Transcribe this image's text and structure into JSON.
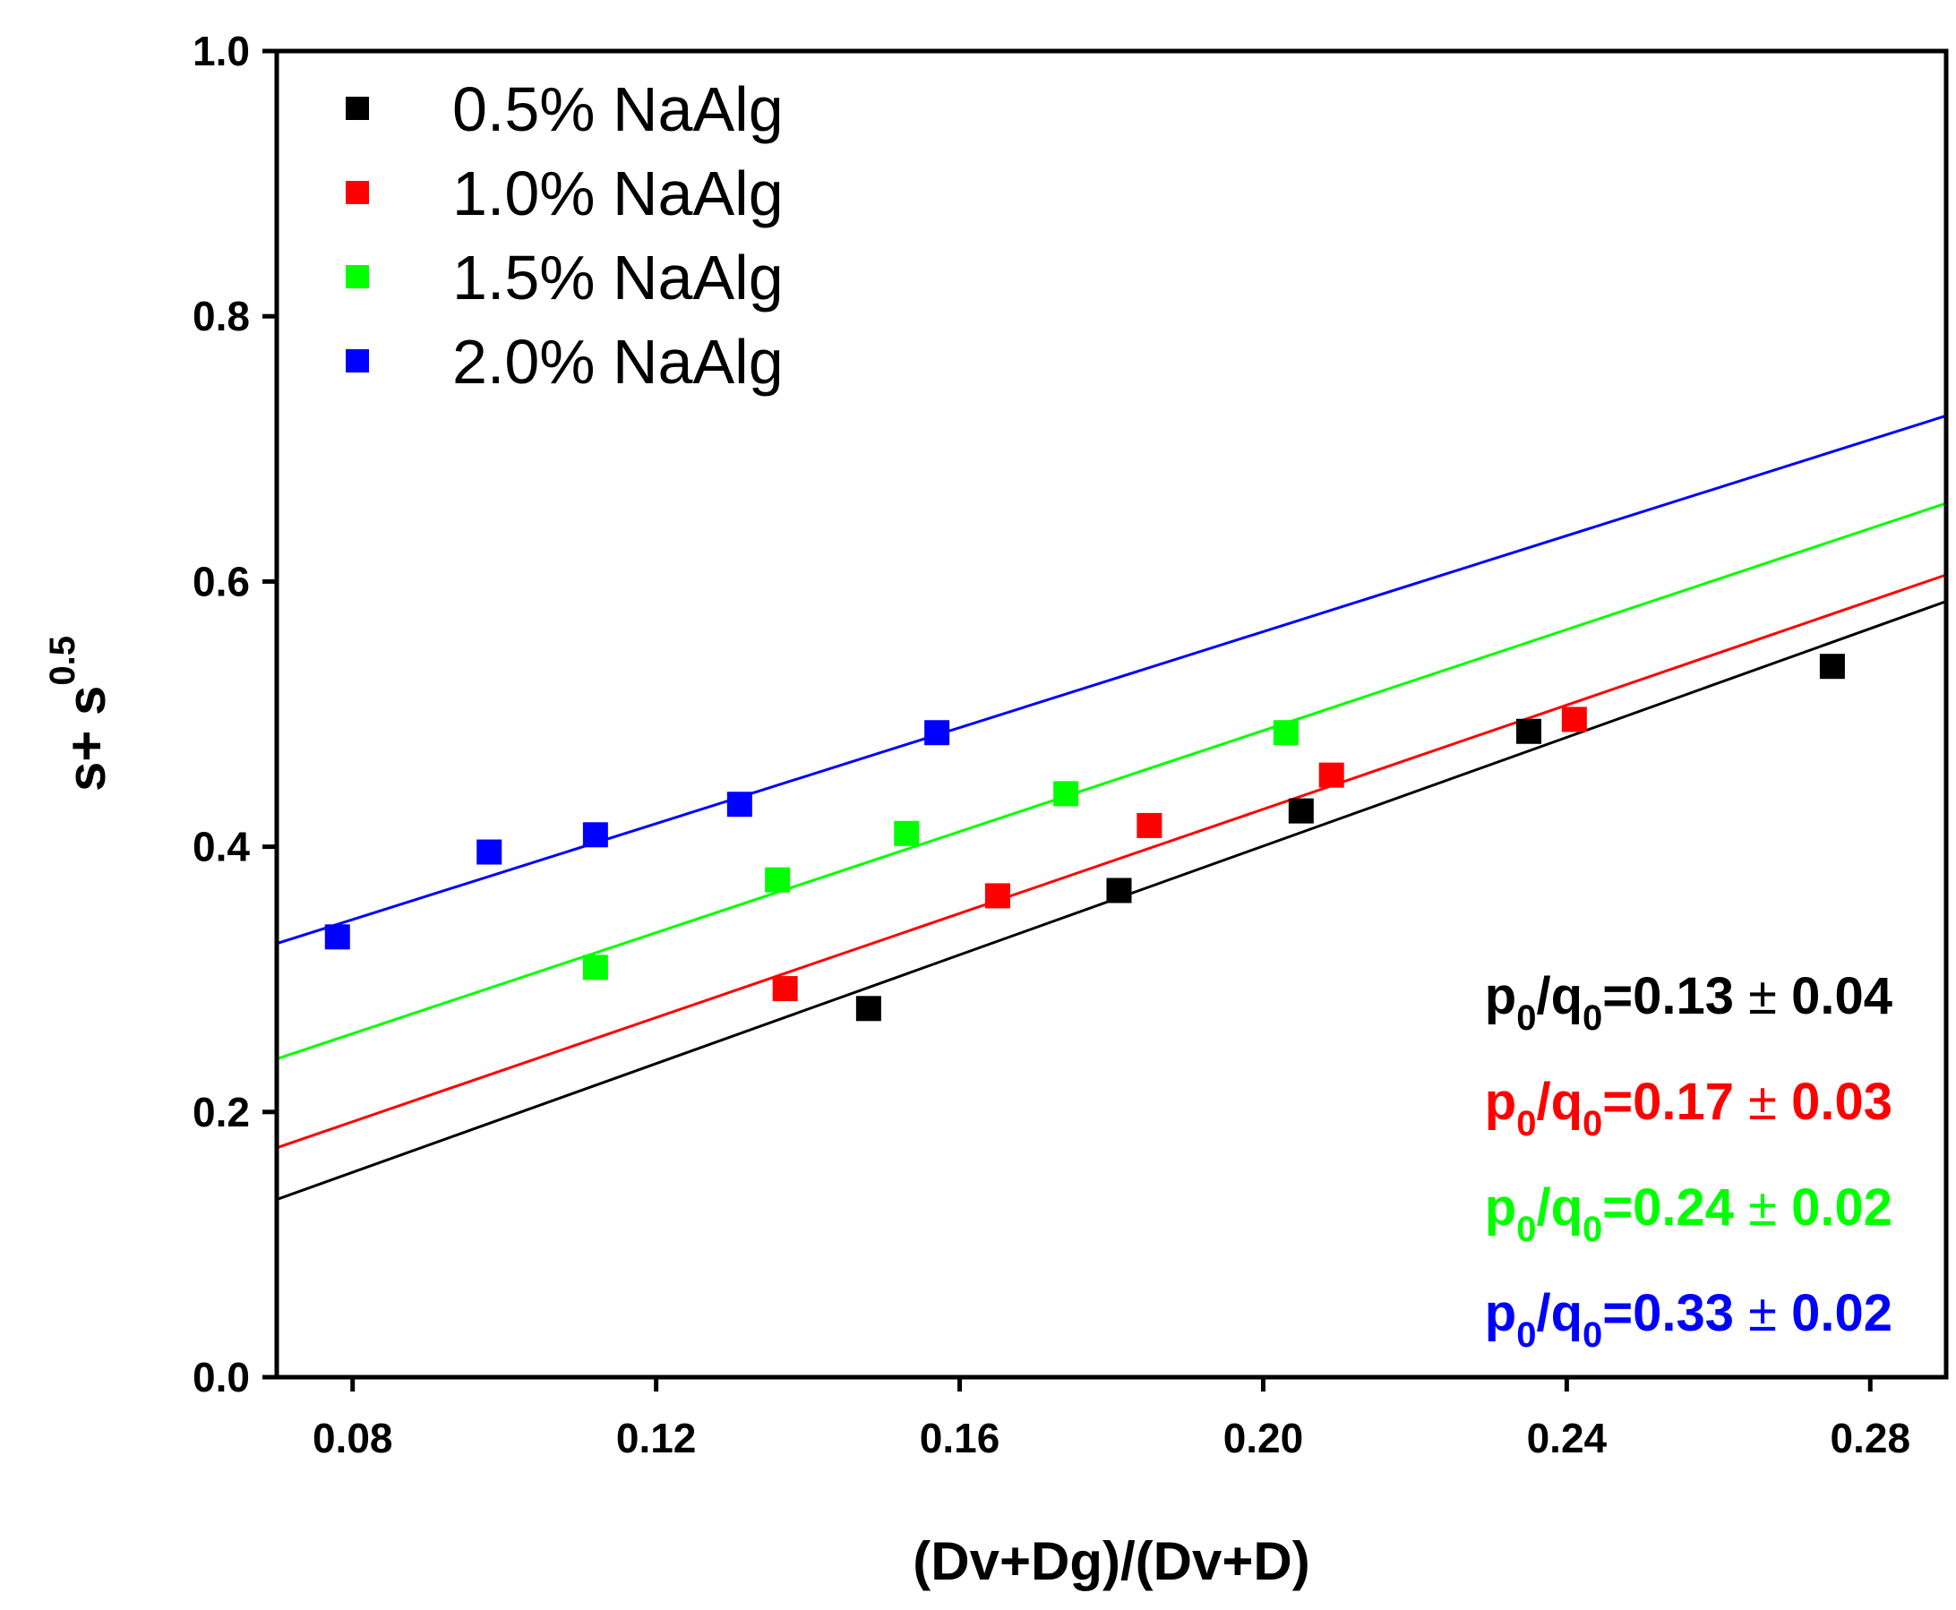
{
  "chart_data": {
    "type": "scatter",
    "title": "",
    "xlabel": "(Dv+Dg)/(Dv+D)",
    "ylabel": "s+ s",
    "ylabel_superscript": "0.5",
    "xlim": [
      0.07,
      0.29
    ],
    "ylim": [
      0.0,
      1.0
    ],
    "xticks": [
      0.08,
      0.12,
      0.16,
      0.2,
      0.24,
      0.28
    ],
    "xtick_labels": [
      "0.08",
      "0.12",
      "0.16",
      "0.20",
      "0.24",
      "0.28"
    ],
    "yticks": [
      0.0,
      0.2,
      0.4,
      0.6,
      0.8,
      1.0
    ],
    "ytick_labels": [
      "0.0",
      "0.2",
      "0.4",
      "0.6",
      "0.8",
      "1.0"
    ],
    "grid": false,
    "legend_position": "top-left",
    "series": [
      {
        "name": "0.5% NaAlg",
        "color": "#000000",
        "points": [
          [
            0.148,
            0.278
          ],
          [
            0.181,
            0.367
          ],
          [
            0.205,
            0.427
          ],
          [
            0.235,
            0.487
          ],
          [
            0.275,
            0.536
          ]
        ],
        "fit": [
          [
            0.07,
            0.134
          ],
          [
            0.29,
            0.585
          ]
        ]
      },
      {
        "name": "1.0% NaAlg",
        "color": "#ff0000",
        "points": [
          [
            0.137,
            0.293
          ],
          [
            0.165,
            0.363
          ],
          [
            0.185,
            0.416
          ],
          [
            0.209,
            0.454
          ],
          [
            0.241,
            0.496
          ]
        ],
        "fit": [
          [
            0.07,
            0.173
          ],
          [
            0.29,
            0.605
          ]
        ]
      },
      {
        "name": "1.5% NaAlg",
        "color": "#00ff00",
        "points": [
          [
            0.112,
            0.309
          ],
          [
            0.136,
            0.375
          ],
          [
            0.153,
            0.41
          ],
          [
            0.174,
            0.44
          ],
          [
            0.203,
            0.486
          ]
        ],
        "fit": [
          [
            0.07,
            0.24
          ],
          [
            0.29,
            0.659
          ]
        ]
      },
      {
        "name": "2.0% NaAlg",
        "color": "#0000ff",
        "points": [
          [
            0.078,
            0.332
          ],
          [
            0.098,
            0.396
          ],
          [
            0.112,
            0.409
          ],
          [
            0.131,
            0.432
          ],
          [
            0.157,
            0.486
          ]
        ],
        "fit": [
          [
            0.07,
            0.327
          ],
          [
            0.29,
            0.725
          ]
        ]
      }
    ],
    "annotations": [
      {
        "p": "p",
        "sub_p": "0",
        "slash": "/",
        "q": "q",
        "sub_q": "0",
        "eq": "=",
        "value": "0.13",
        "pm": "±",
        "err": "0.04",
        "color": "#000000"
      },
      {
        "p": "p",
        "sub_p": "0",
        "slash": "/",
        "q": "q",
        "sub_q": "0",
        "eq": "=",
        "value": "0.17",
        "pm": "±",
        "err": "0.03",
        "color": "#ff0000"
      },
      {
        "p": "p",
        "sub_p": "0",
        "slash": "/",
        "q": "q",
        "sub_q": "0",
        "eq": "=",
        "value": "0.24",
        "pm": "±",
        "err": "0.02",
        "color": "#00ff00"
      },
      {
        "p": "p",
        "sub_p": "0",
        "slash": "/",
        "q": "q",
        "sub_q": "0",
        "eq": "=",
        "value": "0.33",
        "pm": "±",
        "err": "0.02",
        "color": "#0000ff"
      }
    ]
  }
}
